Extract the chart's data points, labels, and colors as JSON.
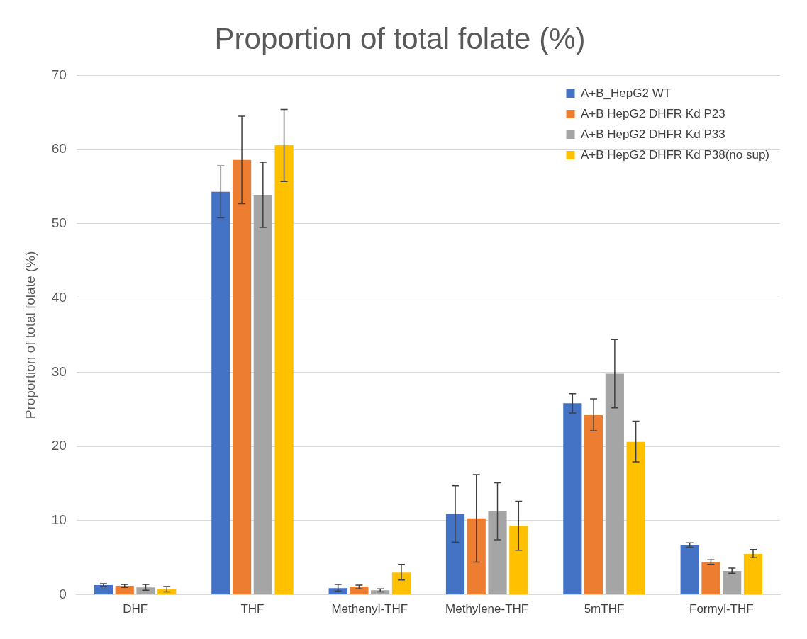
{
  "chart_data": {
    "type": "bar",
    "title": "Proportion of total folate (%)",
    "ylabel": "Proportion of total folate (%)",
    "categories": [
      "DHF",
      "THF",
      "Methenyl-THF",
      "Methylene-THF",
      "5mTHF",
      "Formyl-THF"
    ],
    "ylim": [
      0,
      70
    ],
    "yticks": [
      0,
      10,
      20,
      30,
      40,
      50,
      60,
      70
    ],
    "grid": "y",
    "legend": "top right",
    "series": [
      {
        "name": "A+B_HepG2 WT",
        "color": "#4472c4",
        "values": [
          1.3,
          54.3,
          0.9,
          10.9,
          25.8,
          6.7
        ],
        "errors": [
          [
            1.1,
            1.5
          ],
          [
            50.8,
            57.8
          ],
          [
            0.5,
            1.4
          ],
          [
            7.1,
            14.7
          ],
          [
            24.5,
            27.1
          ],
          [
            6.4,
            7.0
          ]
        ]
      },
      {
        "name": "A+B HepG2 DHFR Kd P23",
        "color": "#ed7d31",
        "values": [
          1.2,
          58.6,
          1.1,
          10.3,
          24.2,
          4.4
        ],
        "errors": [
          [
            1.0,
            1.4
          ],
          [
            52.7,
            64.5
          ],
          [
            0.8,
            1.3
          ],
          [
            4.4,
            16.2
          ],
          [
            22.1,
            26.4
          ],
          [
            4.1,
            4.7
          ]
        ]
      },
      {
        "name": "A+B HepG2 DHFR Kd P33",
        "color": "#a5a5a5",
        "values": [
          1.0,
          53.9,
          0.6,
          11.3,
          29.8,
          3.2
        ],
        "errors": [
          [
            0.6,
            1.4
          ],
          [
            49.5,
            58.3
          ],
          [
            0.4,
            0.8
          ],
          [
            7.4,
            15.1
          ],
          [
            25.2,
            34.4
          ],
          [
            2.9,
            3.6
          ]
        ]
      },
      {
        "name": "A+B HepG2 DHFR Kd P38(no sup)",
        "color": "#ffc000",
        "values": [
          0.8,
          60.6,
          3.0,
          9.3,
          20.6,
          5.5
        ],
        "errors": [
          [
            0.4,
            1.1
          ],
          [
            55.7,
            65.4
          ],
          [
            2.0,
            4.1
          ],
          [
            6.0,
            12.6
          ],
          [
            17.9,
            23.4
          ],
          [
            5.0,
            6.1
          ]
        ]
      }
    ]
  }
}
